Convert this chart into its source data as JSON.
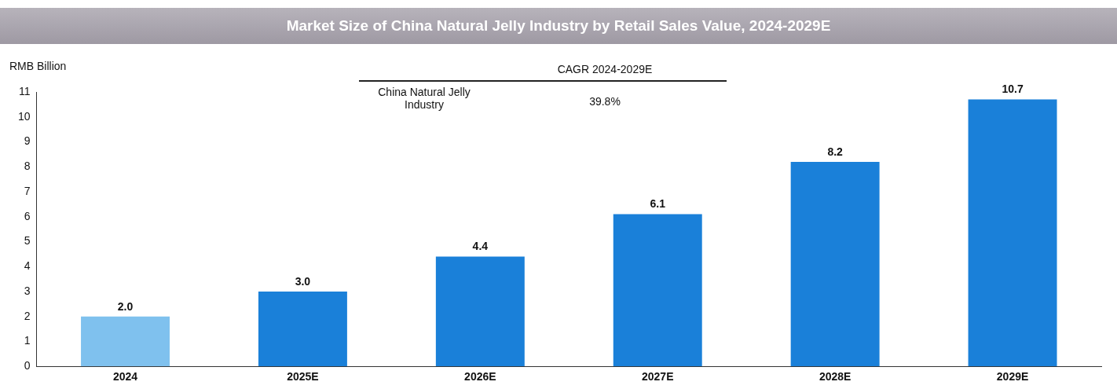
{
  "chart_data": {
    "type": "bar",
    "title": "Market Size of China Natural Jelly Industry by Retail Sales Value, 2024-2029E",
    "ylabel": "RMB Billion",
    "categories": [
      "2024",
      "2025E",
      "2026E",
      "2027E",
      "2028E",
      "2029E"
    ],
    "values": [
      2.0,
      3.0,
      4.4,
      6.1,
      8.2,
      10.7
    ],
    "colors": [
      "#7fc1ee",
      "#1a80d9",
      "#1a80d9",
      "#1a80d9",
      "#1a80d9",
      "#1a80d9"
    ],
    "ylim": [
      0,
      11
    ],
    "yticks": [
      0,
      1,
      2,
      3,
      4,
      5,
      6,
      7,
      8,
      9,
      10,
      11
    ],
    "value_labels": [
      "2.0",
      "3.0",
      "4.4",
      "6.1",
      "8.2",
      "10.7"
    ],
    "grid": false,
    "legend": false,
    "annotations": [
      "CAGR 2024-2029E",
      "China Natural Jelly Industry",
      "39.8%"
    ]
  }
}
